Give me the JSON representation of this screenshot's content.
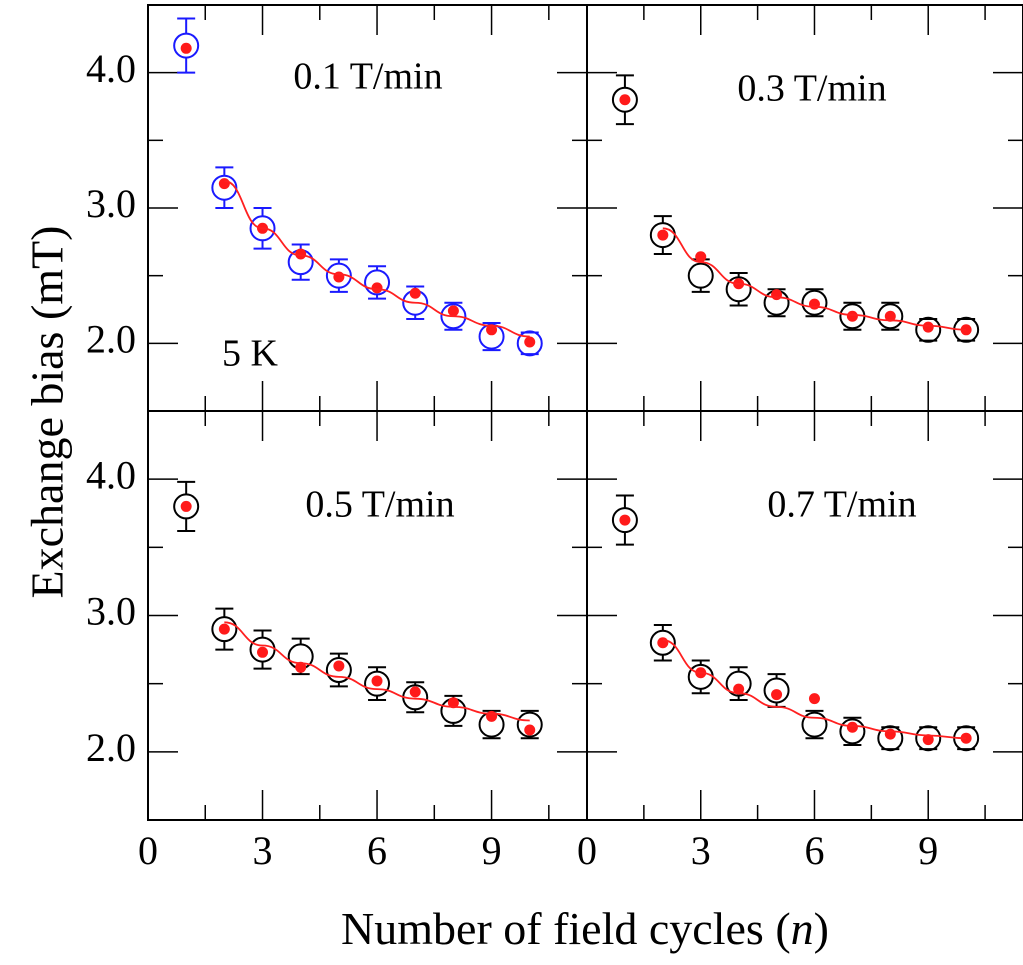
{
  "figure": {
    "xlabel_text": "Number of field cycles (",
    "xlabel_var": "n",
    "xlabel_close": ")",
    "ylabel": "Exchange bias (mT)"
  },
  "colors": {
    "open_blue": "#1a1aff",
    "open_black": "#000000",
    "filled_red": "#ff1a1a",
    "fit_red": "#ff2020"
  },
  "chart_data": [
    {
      "type": "scatter",
      "panel": "top-left",
      "label": "0.1 T/min",
      "annotation": "5 K",
      "xlim": [
        0,
        11.5
      ],
      "ylim": [
        1.5,
        4.5
      ],
      "xticks": [
        0,
        3,
        6,
        9
      ],
      "xtick_labels": [
        "",
        "",
        "",
        ""
      ],
      "yticks": [
        2.0,
        3.0,
        4.0
      ],
      "ytick_labels": [
        "2.0",
        "3.0",
        "4.0"
      ],
      "series": [
        {
          "marker": "open-circle",
          "color": "#1a1aff",
          "x": [
            1,
            2,
            3,
            4,
            5,
            6,
            7,
            8,
            9,
            10
          ],
          "y": [
            4.2,
            3.15,
            2.85,
            2.6,
            2.5,
            2.45,
            2.3,
            2.2,
            2.05,
            2.0
          ],
          "err": [
            0.2,
            0.15,
            0.15,
            0.13,
            0.12,
            0.12,
            0.12,
            0.1,
            0.1,
            0.08
          ]
        },
        {
          "marker": "filled-dot",
          "color": "#ff1a1a",
          "x": [
            1,
            2,
            3,
            4,
            5,
            6,
            7,
            8,
            9,
            10
          ],
          "y": [
            4.18,
            3.18,
            2.85,
            2.66,
            2.49,
            2.41,
            2.37,
            2.24,
            2.1,
            2.01
          ]
        },
        {
          "marker": "fit-line",
          "color": "#ff2020",
          "x": [
            2,
            3,
            4,
            5,
            6,
            7,
            8,
            9,
            10
          ],
          "y": [
            3.2,
            2.85,
            2.65,
            2.51,
            2.4,
            2.3,
            2.2,
            2.13,
            2.05
          ]
        }
      ]
    },
    {
      "type": "scatter",
      "panel": "top-right",
      "label": "0.3 T/min",
      "xlim": [
        0,
        11.5
      ],
      "ylim": [
        1.5,
        4.5
      ],
      "xticks": [
        0,
        3,
        6,
        9
      ],
      "xtick_labels": [
        "",
        "",
        "",
        ""
      ],
      "yticks": [
        2.0,
        3.0,
        4.0
      ],
      "ytick_labels": [
        "",
        "",
        ""
      ],
      "series": [
        {
          "marker": "open-circle",
          "color": "#000000",
          "x": [
            1,
            2,
            3,
            4,
            5,
            6,
            7,
            8,
            9,
            10
          ],
          "y": [
            3.8,
            2.8,
            2.5,
            2.4,
            2.3,
            2.3,
            2.2,
            2.2,
            2.1,
            2.1
          ],
          "err": [
            0.18,
            0.14,
            0.12,
            0.12,
            0.1,
            0.1,
            0.1,
            0.1,
            0.08,
            0.08
          ]
        },
        {
          "marker": "filled-dot",
          "color": "#ff1a1a",
          "x": [
            1,
            2,
            3,
            4,
            5,
            6,
            7,
            8,
            9,
            10
          ],
          "y": [
            3.8,
            2.8,
            2.64,
            2.44,
            2.36,
            2.29,
            2.2,
            2.2,
            2.12,
            2.1
          ]
        },
        {
          "marker": "fit-line",
          "color": "#ff2020",
          "x": [
            2,
            3,
            4,
            5,
            6,
            7,
            8,
            9,
            10
          ],
          "y": [
            2.85,
            2.6,
            2.44,
            2.34,
            2.27,
            2.21,
            2.17,
            2.13,
            2.1
          ]
        }
      ]
    },
    {
      "type": "scatter",
      "panel": "bottom-left",
      "label": "0.5 T/min",
      "xlim": [
        0,
        11.5
      ],
      "ylim": [
        1.5,
        4.5
      ],
      "xticks": [
        0,
        3,
        6,
        9
      ],
      "xtick_labels": [
        "0",
        "3",
        "6",
        "9"
      ],
      "yticks": [
        2.0,
        3.0,
        4.0
      ],
      "ytick_labels": [
        "2.0",
        "3.0",
        "4.0"
      ],
      "series": [
        {
          "marker": "open-circle",
          "color": "#000000",
          "x": [
            1,
            2,
            3,
            4,
            5,
            6,
            7,
            8,
            9,
            10
          ],
          "y": [
            3.8,
            2.9,
            2.75,
            2.7,
            2.6,
            2.5,
            2.4,
            2.3,
            2.2,
            2.2
          ],
          "err": [
            0.18,
            0.15,
            0.14,
            0.13,
            0.12,
            0.12,
            0.11,
            0.11,
            0.1,
            0.1
          ]
        },
        {
          "marker": "filled-dot",
          "color": "#ff1a1a",
          "x": [
            1,
            2,
            3,
            4,
            5,
            6,
            7,
            8,
            9,
            10
          ],
          "y": [
            3.8,
            2.9,
            2.73,
            2.62,
            2.63,
            2.52,
            2.44,
            2.36,
            2.26,
            2.16
          ]
        },
        {
          "marker": "fit-line",
          "color": "#ff2020",
          "x": [
            2,
            3,
            4,
            5,
            6,
            7,
            8,
            9,
            10
          ],
          "y": [
            2.95,
            2.78,
            2.65,
            2.55,
            2.46,
            2.39,
            2.33,
            2.28,
            2.23
          ]
        }
      ]
    },
    {
      "type": "scatter",
      "panel": "bottom-right",
      "label": "0.7 T/min",
      "xlim": [
        0,
        11.5
      ],
      "ylim": [
        1.5,
        4.5
      ],
      "xticks": [
        0,
        3,
        6,
        9
      ],
      "xtick_labels": [
        "0",
        "3",
        "6",
        "9"
      ],
      "yticks": [
        2.0,
        3.0,
        4.0
      ],
      "ytick_labels": [
        "",
        "",
        ""
      ],
      "series": [
        {
          "marker": "open-circle",
          "color": "#000000",
          "x": [
            1,
            2,
            3,
            4,
            5,
            6,
            7,
            8,
            9,
            10
          ],
          "y": [
            3.7,
            2.8,
            2.55,
            2.5,
            2.45,
            2.2,
            2.15,
            2.1,
            2.1,
            2.1
          ],
          "err": [
            0.18,
            0.13,
            0.12,
            0.12,
            0.12,
            0.1,
            0.1,
            0.08,
            0.08,
            0.08
          ]
        },
        {
          "marker": "filled-dot",
          "color": "#ff1a1a",
          "x": [
            1,
            2,
            3,
            4,
            5,
            6,
            7,
            8,
            9,
            10
          ],
          "y": [
            3.7,
            2.8,
            2.58,
            2.46,
            2.42,
            2.39,
            2.18,
            2.13,
            2.09,
            2.1
          ]
        },
        {
          "marker": "fit-line",
          "color": "#ff2020",
          "x": [
            2,
            3,
            4,
            5,
            6,
            7,
            8,
            9,
            10
          ],
          "y": [
            2.82,
            2.58,
            2.43,
            2.33,
            2.25,
            2.19,
            2.15,
            2.12,
            2.1
          ]
        }
      ]
    }
  ]
}
